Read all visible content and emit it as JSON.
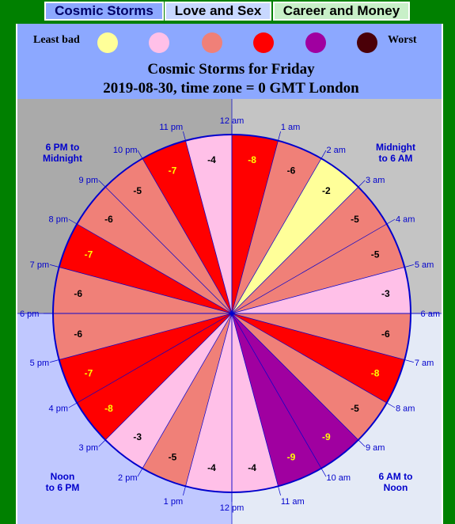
{
  "tabs": [
    {
      "label": "Cosmic Storms"
    },
    {
      "label": "Love and Sex"
    },
    {
      "label": "Career and Money"
    }
  ],
  "legend": {
    "least_label": "Least bad",
    "worst_label": "Worst",
    "colors": [
      "#ffff99",
      "#ffc0e8",
      "#f08078",
      "#ff0000",
      "#a000a0",
      "#4a0008"
    ]
  },
  "colors": {
    "page_bg": "#008000",
    "panel_bg": "#8ca8ff",
    "quadrant_top_left": "#aaaaaa",
    "quadrant_top_right": "#c4c4c4",
    "quadrant_bottom_left": "#c0c8ff",
    "quadrant_bottom_right": "#e4eaf6",
    "circle_outline": "#0000cc"
  },
  "chart_data": {
    "type": "pie",
    "title": "Cosmic Storms for Friday",
    "subtitle": "2019-08-30, time zone = 0 GMT London",
    "hours": [
      "12 am",
      "1 am",
      "2 am",
      "3 am",
      "4 am",
      "5 am",
      "6 am",
      "7 am",
      "8 am",
      "9 am",
      "10 am",
      "11 am",
      "12 pm",
      "1 pm",
      "2 pm",
      "3 pm",
      "4 pm",
      "5 pm",
      "6 pm",
      "7 pm",
      "8 pm",
      "9 pm",
      "10 pm",
      "11 pm"
    ],
    "values": [
      -8,
      -6,
      -2,
      -5,
      -5,
      -3,
      -6,
      -8,
      -5,
      -9,
      -9,
      -4,
      -4,
      -5,
      -3,
      -8,
      -7,
      -6,
      -6,
      -7,
      -6,
      -5,
      -7,
      -4
    ],
    "quadrant_labels": [
      {
        "position": "top-left",
        "lines": [
          "6 PM to",
          "Midnight"
        ]
      },
      {
        "position": "top-right",
        "lines": [
          "Midnight",
          "to 6 AM"
        ]
      },
      {
        "position": "bottom-left",
        "lines": [
          "Noon",
          "to 6 PM"
        ]
      },
      {
        "position": "bottom-right",
        "lines": [
          "6 AM to",
          "Noon"
        ]
      }
    ]
  }
}
